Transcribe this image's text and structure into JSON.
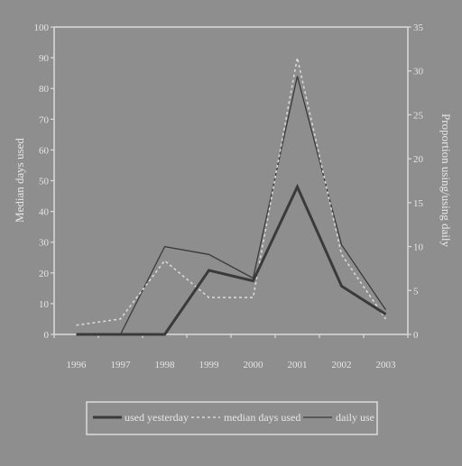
{
  "chart_data": {
    "type": "line",
    "categories": [
      "1996",
      "1997",
      "1998",
      "1999",
      "2000",
      "2001",
      "2002",
      "2003"
    ],
    "x": [
      1996,
      1997,
      1998,
      1999,
      2000,
      2001,
      2002,
      2003
    ],
    "ylabel": "Median days used",
    "y2label": "Proportion using/using daily",
    "ylim": [
      0,
      100
    ],
    "y2lim": [
      0,
      35
    ],
    "yticks": [
      "0",
      "10",
      "20",
      "30",
      "40",
      "50",
      "60",
      "70",
      "80",
      "90",
      "100"
    ],
    "y2ticks": [
      "0",
      "5",
      "10",
      "15",
      "20",
      "25",
      "30",
      "35"
    ],
    "grid": false,
    "legend_position": "bottom",
    "series": [
      {
        "name": "used yesterday",
        "axis": "right",
        "style": "solid-thick",
        "values": [
          0,
          0,
          0,
          7.3,
          6.1,
          16.8,
          5.5,
          2.3
        ]
      },
      {
        "name": "median days used",
        "axis": "left",
        "style": "dotted",
        "values": [
          3,
          5,
          24,
          12,
          12,
          90,
          26,
          5
        ]
      },
      {
        "name": "daily use",
        "axis": "right",
        "style": "solid-thin",
        "values": [
          0,
          0,
          10,
          9.1,
          6.4,
          29.4,
          10.2,
          2.8
        ]
      }
    ]
  }
}
